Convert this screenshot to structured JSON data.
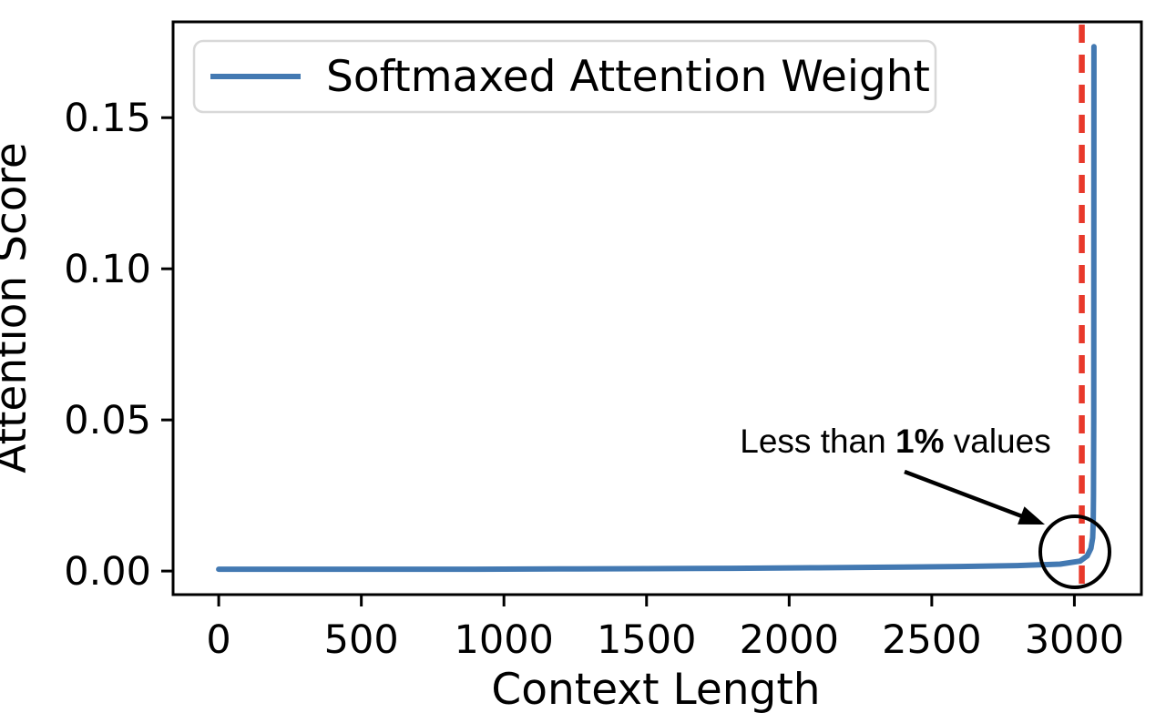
{
  "figure": {
    "background": "#ffffff",
    "text_color": "#000000"
  },
  "chart_data": {
    "type": "line",
    "title": "",
    "xlabel": "Context Length",
    "ylabel": "Attention Score",
    "xlim": [
      -160,
      3235
    ],
    "ylim": [
      -0.0078,
      0.1817
    ],
    "x_ticks": [
      0,
      500,
      1000,
      1500,
      2000,
      2500,
      3000
    ],
    "y_ticks": [
      0,
      0.05,
      0.1,
      0.15
    ],
    "y_tick_labels": [
      "0.00",
      "0.05",
      "0.10",
      "0.15"
    ],
    "grid": false,
    "legend": {
      "position": "upper left",
      "entries": [
        {
          "label": "Softmaxed Attention Weight",
          "color": "#4379b2"
        }
      ]
    },
    "series": [
      {
        "name": "Softmaxed Attention Weight",
        "color": "#4379b2",
        "points": [
          [
            0,
            0.0006
          ],
          [
            300,
            0.0006
          ],
          [
            600,
            0.0006
          ],
          [
            900,
            0.0006
          ],
          [
            1200,
            0.0007
          ],
          [
            1500,
            0.0008
          ],
          [
            1800,
            0.0009
          ],
          [
            2100,
            0.0011
          ],
          [
            2400,
            0.0013
          ],
          [
            2600,
            0.0015
          ],
          [
            2800,
            0.0018
          ],
          [
            2950,
            0.0023
          ],
          [
            3020,
            0.0033
          ],
          [
            3045,
            0.005
          ],
          [
            3058,
            0.0075
          ],
          [
            3064,
            0.011
          ],
          [
            3066,
            0.016
          ],
          [
            3067,
            0.025
          ],
          [
            3068,
            0.05
          ],
          [
            3068.5,
            0.1735
          ]
        ],
        "peak": {
          "x": 3068,
          "y": 0.1735
        }
      }
    ],
    "vline": {
      "x": 3026,
      "color": "#e8392b",
      "style": "dashed"
    },
    "annotation": {
      "text": "Less than 1% values",
      "parts": [
        "Less than ",
        "1%",
        " values"
      ]
    }
  }
}
